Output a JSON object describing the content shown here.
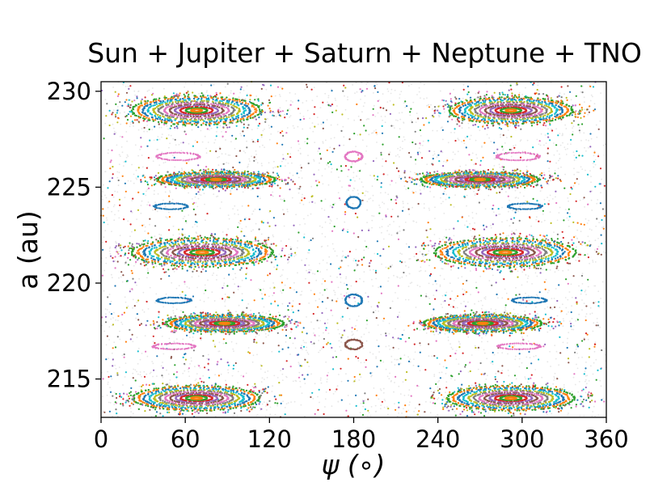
{
  "chart_data": {
    "type": "scatter",
    "title": "Sun + Jupiter + Saturn + Neptune + TNO",
    "xlabel": "ψ (∘)",
    "ylabel": "a (au)",
    "xlim": [
      0,
      360
    ],
    "ylim": [
      213.0,
      230.5
    ],
    "xticks": [
      0,
      60,
      120,
      180,
      240,
      300,
      360
    ],
    "yticks": [
      215,
      220,
      225,
      230
    ],
    "grid": false,
    "legend": "none",
    "background_points_color": "#e6e6e6",
    "colors": [
      "#1f77b4",
      "#ff7f0e",
      "#2ca02c",
      "#d62728",
      "#9467bd",
      "#8c564b",
      "#e377c2",
      "#7f7f7f",
      "#bcbd22",
      "#17becf"
    ],
    "islands": [
      {
        "cx": 68,
        "cy": 229.0,
        "rx": 46,
        "ry": 0.75
      },
      {
        "cx": 292,
        "cy": 229.0,
        "rx": 44,
        "ry": 0.7
      },
      {
        "cx": 82,
        "cy": 225.4,
        "rx": 42,
        "ry": 0.4
      },
      {
        "cx": 270,
        "cy": 225.4,
        "rx": 42,
        "ry": 0.4
      },
      {
        "cx": 72,
        "cy": 221.6,
        "rx": 50,
        "ry": 0.75
      },
      {
        "cx": 288,
        "cy": 221.6,
        "rx": 50,
        "ry": 0.75
      },
      {
        "cx": 88,
        "cy": 217.9,
        "rx": 42,
        "ry": 0.45
      },
      {
        "cx": 272,
        "cy": 217.9,
        "rx": 42,
        "ry": 0.45
      },
      {
        "cx": 68,
        "cy": 214.0,
        "rx": 45,
        "ry": 0.65
      },
      {
        "cx": 292,
        "cy": 214.0,
        "rx": 45,
        "ry": 0.65
      }
    ],
    "small_features": [
      {
        "cx": 55,
        "cy": 226.6,
        "rx": 15,
        "ry": 0.2,
        "color": "#e377c2"
      },
      {
        "cx": 297,
        "cy": 226.6,
        "rx": 15,
        "ry": 0.2,
        "color": "#e377c2"
      },
      {
        "cx": 180,
        "cy": 226.6,
        "rx": 6,
        "ry": 0.25,
        "color": "#e377c2"
      },
      {
        "cx": 180,
        "cy": 224.2,
        "rx": 5,
        "ry": 0.3,
        "color": "#1f77b4"
      },
      {
        "cx": 50,
        "cy": 224.0,
        "rx": 12,
        "ry": 0.15,
        "color": "#1f77b4"
      },
      {
        "cx": 302,
        "cy": 224.0,
        "rx": 12,
        "ry": 0.15,
        "color": "#1f77b4"
      },
      {
        "cx": 180,
        "cy": 219.1,
        "rx": 6,
        "ry": 0.3,
        "color": "#1f77b4"
      },
      {
        "cx": 52,
        "cy": 219.1,
        "rx": 12,
        "ry": 0.15,
        "color": "#1f77b4"
      },
      {
        "cx": 305,
        "cy": 219.1,
        "rx": 12,
        "ry": 0.15,
        "color": "#1f77b4"
      },
      {
        "cx": 180,
        "cy": 216.8,
        "rx": 6,
        "ry": 0.25,
        "color": "#8c564b"
      },
      {
        "cx": 52,
        "cy": 216.7,
        "rx": 15,
        "ry": 0.15,
        "color": "#e377c2"
      },
      {
        "cx": 298,
        "cy": 216.7,
        "rx": 15,
        "ry": 0.15,
        "color": "#e377c2"
      }
    ]
  }
}
